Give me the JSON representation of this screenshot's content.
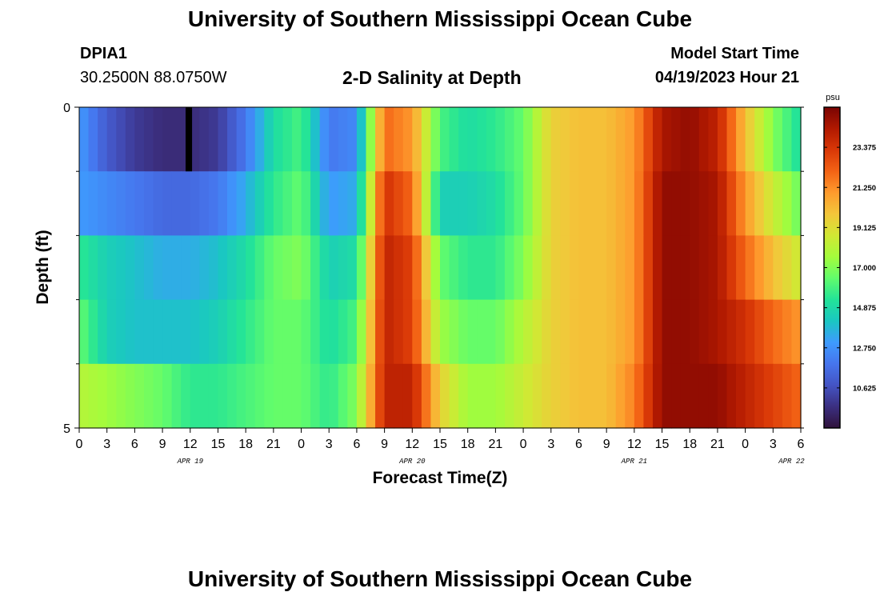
{
  "header": {
    "title": "University of Southern Mississippi Ocean Cube",
    "station": "DPIA1",
    "coordinates": "30.2500N  88.0750W",
    "subtitle": "2-D Salinity at Depth",
    "model_start_label": "Model Start Time",
    "model_start_value": "04/19/2023 Hour 21"
  },
  "footer": {
    "title": "University of Southern Mississippi Ocean Cube"
  },
  "chart_data": {
    "type": "heatmap",
    "title": "2-D Salinity at Depth",
    "xlabel": "Forecast Time(Z)",
    "ylabel": "Depth (ft)",
    "x_tick_labels": [
      "0",
      "3",
      "6",
      "9",
      "12",
      "15",
      "18",
      "21",
      "0",
      "3",
      "6",
      "9",
      "12",
      "15",
      "18",
      "21",
      "0",
      "3",
      "6",
      "9",
      "12",
      "15",
      "18",
      "21",
      "0",
      "3",
      "6"
    ],
    "day_labels": [
      "APR 19",
      "APR 20",
      "APR 21",
      "APR 22"
    ],
    "y_tick_labels": [
      "0",
      "5"
    ],
    "ylim": [
      0,
      5
    ],
    "x_range_hours": [
      0,
      78
    ],
    "colorbar": {
      "unit": "psu",
      "range": [
        8.5,
        25.5
      ],
      "ticks": [
        "23.375",
        "21.250",
        "19.125",
        "17.000",
        "14.875",
        "12.750",
        "10.625"
      ],
      "colormap": [
        "#30123b",
        "#3b2f80",
        "#4454c4",
        "#4675ed",
        "#3e9bfe",
        "#1ac7c2",
        "#23e398",
        "#61fc6c",
        "#a4fc3c",
        "#d1e834",
        "#f3c63a",
        "#fe9b2d",
        "#f36315",
        "#d93807",
        "#b11901",
        "#7a0403"
      ]
    },
    "depth_layers": 5,
    "hours": [
      0,
      3,
      6,
      9,
      12,
      15,
      18,
      21,
      24,
      27,
      30,
      33,
      36,
      39,
      42,
      45,
      48,
      51,
      54,
      57,
      60,
      63,
      66,
      69,
      72,
      75,
      78
    ],
    "salinity_psu": [
      [
        13.0,
        11.0,
        10.0,
        9.5,
        9.5,
        10.0,
        12.0,
        15.0,
        16.0,
        12.0,
        12.5,
        22.0,
        21.0,
        16.0,
        15.0,
        15.5,
        16.5,
        19.5,
        20.0,
        20.0,
        21.0,
        24.5,
        25.0,
        24.0,
        20.0,
        17.0,
        15.0
      ],
      [
        13.0,
        12.5,
        12.0,
        11.5,
        11.5,
        12.0,
        13.5,
        15.5,
        16.5,
        13.0,
        13.5,
        23.5,
        22.0,
        14.5,
        14.5,
        15.0,
        16.5,
        19.5,
        20.0,
        20.0,
        21.0,
        25.0,
        25.0,
        24.5,
        21.0,
        18.5,
        16.5
      ],
      [
        15.5,
        14.5,
        14.0,
        13.5,
        13.5,
        14.0,
        15.0,
        16.5,
        17.0,
        14.5,
        15.0,
        24.0,
        23.0,
        16.5,
        15.5,
        15.5,
        17.0,
        19.5,
        20.0,
        20.0,
        21.0,
        25.0,
        25.0,
        24.5,
        22.0,
        20.0,
        18.5
      ],
      [
        16.5,
        14.5,
        14.0,
        14.0,
        14.0,
        14.5,
        15.5,
        16.5,
        16.5,
        15.0,
        16.0,
        24.0,
        23.0,
        17.5,
        16.5,
        16.5,
        18.0,
        19.5,
        20.0,
        20.0,
        21.0,
        25.0,
        25.0,
        24.5,
        23.5,
        22.0,
        21.0
      ],
      [
        18.0,
        17.5,
        17.0,
        16.5,
        15.5,
        15.5,
        16.0,
        16.5,
        16.5,
        15.5,
        17.0,
        24.0,
        24.0,
        19.5,
        17.5,
        17.5,
        18.5,
        19.5,
        20.0,
        20.0,
        21.5,
        25.0,
        25.0,
        25.0,
        24.0,
        23.0,
        22.0
      ]
    ],
    "missing_cells": [
      {
        "layer": 0,
        "hour_start": 11.5,
        "hour_end": 12.2
      }
    ]
  }
}
